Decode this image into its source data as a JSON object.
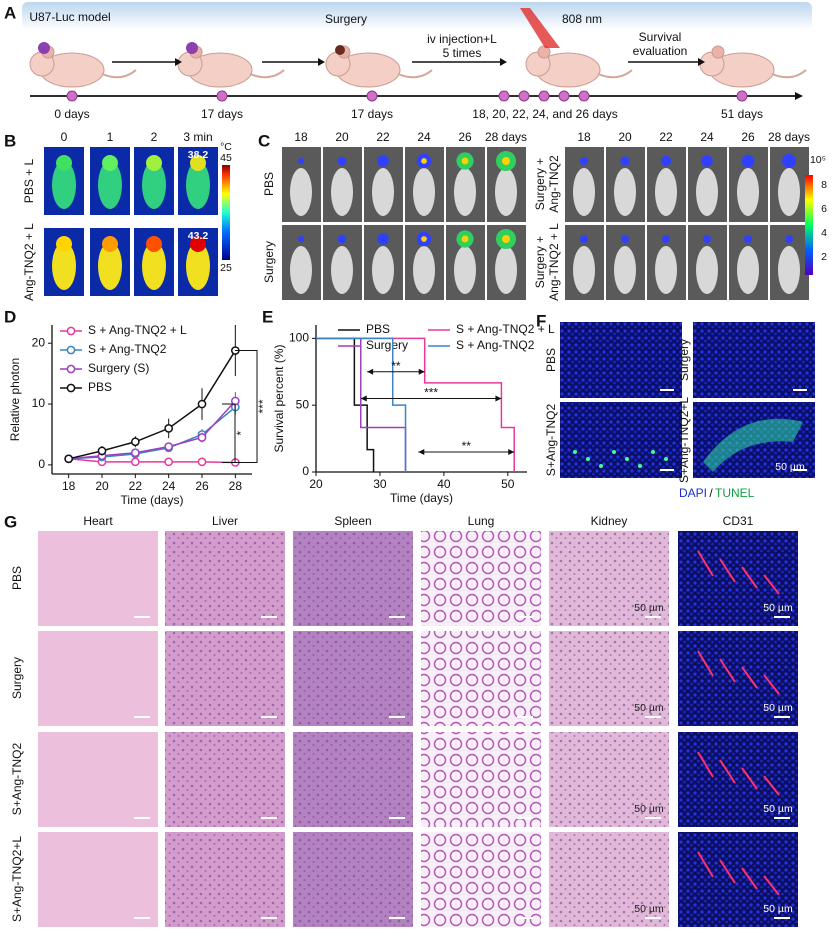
{
  "panel_a": {
    "label": "A",
    "steps": [
      "U87-Luc model",
      "Surgery",
      "iv injection+L",
      "5 times",
      "808 nm",
      "Survival",
      "evaluation"
    ],
    "timeline": [
      "0 days",
      "17 days",
      "17 days",
      "18, 20, 22, 24, and 26 days",
      "51 days"
    ]
  },
  "panel_b": {
    "label": "B",
    "columns": [
      "0",
      "1",
      "2",
      "3 min"
    ],
    "rows": [
      "PBS + L",
      "Ang-TNQ2 + L"
    ],
    "temperatures": [
      "38.2",
      "43.2"
    ],
    "colorbar": {
      "unit": "°C",
      "max": "45",
      "min": "25"
    }
  },
  "panel_c": {
    "label": "C",
    "columns": [
      "18",
      "20",
      "22",
      "24",
      "26",
      "28 days"
    ],
    "rows_left": [
      "PBS",
      "Surgery"
    ],
    "rows_right": [
      [
        "Surgery +",
        "Ang-TNQ2"
      ],
      [
        "Surgery +",
        "Ang-TNQ2 + L"
      ]
    ],
    "colorbar": {
      "scale": "10⁵",
      "ticks": [
        "8",
        "6",
        "4",
        "2"
      ]
    }
  },
  "chart_data": [
    {
      "type": "line",
      "label": "D",
      "xlabel": "Time (days)",
      "ylabel": "Relative photon",
      "x": [
        18,
        20,
        22,
        24,
        26,
        28
      ],
      "xlim": [
        17,
        29
      ],
      "xticks": [
        18,
        20,
        22,
        24,
        26,
        28
      ],
      "ylim": [
        -1.5,
        23
      ],
      "yticks": [
        0,
        10,
        20
      ],
      "markers": true,
      "legend": "upper left",
      "series": [
        {
          "name": "S + Ang-TNQ2 + L",
          "color": "#e8389a",
          "values": [
            1,
            0.5,
            0.5,
            0.5,
            0.5,
            0.4
          ],
          "errors": [
            0.1,
            0.1,
            0.1,
            0.1,
            0.1,
            0.1
          ]
        },
        {
          "name": "S + Ang-TNQ2",
          "color": "#3b84c6",
          "values": [
            1,
            1.3,
            1.8,
            2.8,
            5,
            9.5
          ],
          "errors": [
            0.1,
            0.3,
            0.4,
            0.5,
            0.9,
            1.3
          ]
        },
        {
          "name": "Surgery (S)",
          "color": "#9c3fc0",
          "values": [
            1,
            1.5,
            2,
            3,
            4.5,
            10.5
          ],
          "errors": [
            0.1,
            0.3,
            0.4,
            0.6,
            0.8,
            1.5
          ]
        },
        {
          "name": "PBS",
          "color": "#111111",
          "values": [
            1,
            2.3,
            3.8,
            6,
            10,
            18.8
          ],
          "errors": [
            0.2,
            0.8,
            0.9,
            1.6,
            2.6,
            4.2
          ]
        }
      ],
      "annotations": [
        "***",
        "*"
      ]
    },
    {
      "type": "line",
      "label": "E",
      "xlabel": "Time (days)",
      "ylabel": "Survival percent (%)",
      "xlim": [
        20,
        53
      ],
      "xticks": [
        20,
        30,
        40,
        50
      ],
      "ylim": [
        0,
        110
      ],
      "yticks": [
        0,
        50,
        100
      ],
      "markers": false,
      "legend": "upper center",
      "series": [
        {
          "name": "PBS",
          "color": "#111111",
          "x": [
            20,
            26,
            26,
            28,
            28,
            29,
            29
          ],
          "values": [
            100,
            100,
            50,
            50,
            16.7,
            16.7,
            0
          ]
        },
        {
          "name": "S + Ang-TNQ2 + L",
          "color": "#e8389a",
          "x": [
            20,
            37,
            37,
            49,
            49,
            51,
            51
          ],
          "values": [
            100,
            100,
            66.7,
            66.7,
            33.3,
            33.3,
            0
          ]
        },
        {
          "name": "Surgery",
          "color": "#9c3fc0",
          "x": [
            20,
            27,
            27,
            34,
            34
          ],
          "values": [
            100,
            100,
            33.3,
            33.3,
            0
          ]
        },
        {
          "name": "S + Ang-TNQ2",
          "color": "#3b84c6",
          "x": [
            20,
            32,
            32,
            34,
            34
          ],
          "values": [
            100,
            100,
            50,
            50,
            0
          ]
        }
      ],
      "annotations": [
        "**",
        "***",
        "**"
      ]
    }
  ],
  "panel_f": {
    "label": "F",
    "rows": [
      [
        "PBS",
        "Surgery"
      ],
      [
        "S+Ang-TNQ2",
        "S+Ang-TNQ2+L"
      ]
    ],
    "scale": "50 µm",
    "stain": [
      "DAPI",
      "/",
      "TUNEL"
    ]
  },
  "panel_g": {
    "label": "G",
    "columns": [
      "Heart",
      "Liver",
      "Spleen",
      "Lung",
      "Kidney",
      "CD31"
    ],
    "rows": [
      "PBS",
      "Surgery",
      "S+Ang-TNQ2",
      "S+Ang-TNQ2+L"
    ],
    "scale": "50 µm"
  }
}
